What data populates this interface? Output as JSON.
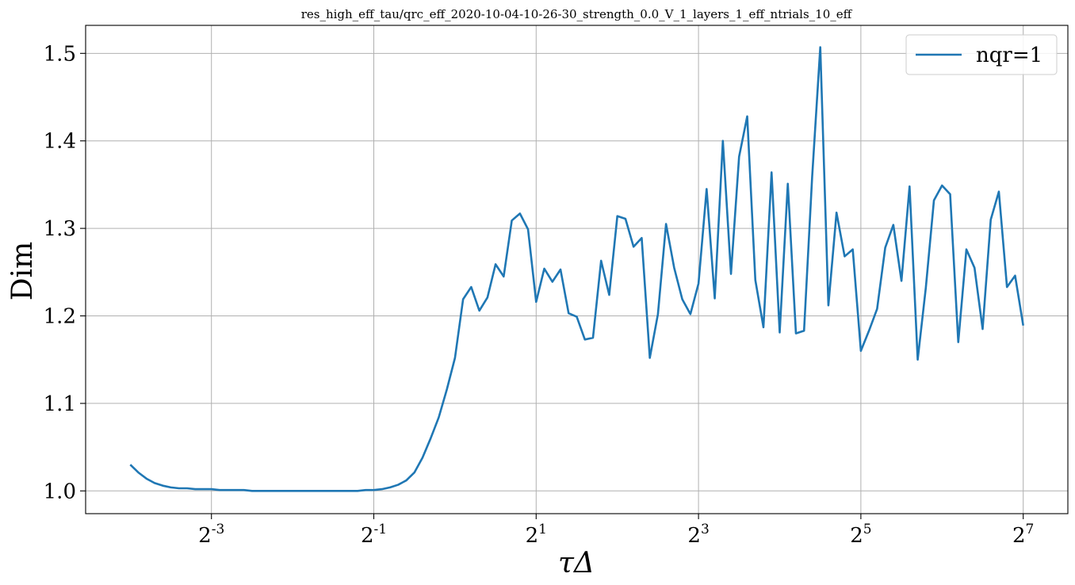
{
  "chart_data": {
    "type": "line",
    "title": "res_high_eff_tau/qrc_eff_2020-10-04-10-26-30_strength_0.0_V_1_layers_1_eff_ntrials_10_eff",
    "xlabel": "τΔ",
    "ylabel": "Dim",
    "xscale": "log2",
    "xlim_log2": [
      -4.55,
      7.55
    ],
    "ylim": [
      0.974,
      1.532
    ],
    "x_ticks": [
      {
        "base": "2",
        "exp": "-3",
        "log2": -3
      },
      {
        "base": "2",
        "exp": "-1",
        "log2": -1
      },
      {
        "base": "2",
        "exp": "1",
        "log2": 1
      },
      {
        "base": "2",
        "exp": "3",
        "log2": 3
      },
      {
        "base": "2",
        "exp": "5",
        "log2": 5
      },
      {
        "base": "2",
        "exp": "7",
        "log2": 7
      }
    ],
    "y_ticks": [
      "1.0",
      "1.1",
      "1.2",
      "1.3",
      "1.4",
      "1.5"
    ],
    "grid": true,
    "legend_position": "top-right",
    "color": "#1f77b4",
    "series": [
      {
        "name": "nqr=1",
        "x_log2": [
          -4.0,
          -3.9,
          -3.8,
          -3.7,
          -3.6,
          -3.5,
          -3.4,
          -3.3,
          -3.2,
          -3.1,
          -3.0,
          -2.9,
          -2.8,
          -2.7,
          -2.6,
          -2.5,
          -2.4,
          -2.3,
          -2.2,
          -2.1,
          -2.0,
          -1.9,
          -1.8,
          -1.7,
          -1.6,
          -1.5,
          -1.4,
          -1.3,
          -1.2,
          -1.1,
          -1.0,
          -0.9,
          -0.8,
          -0.7,
          -0.6,
          -0.5,
          -0.4,
          -0.3,
          -0.2,
          -0.1,
          0.0,
          0.1,
          0.2,
          0.3,
          0.4,
          0.5,
          0.6,
          0.7,
          0.8,
          0.9,
          1.0,
          1.1,
          1.2,
          1.3,
          1.4,
          1.5,
          1.6,
          1.7,
          1.8,
          1.9,
          2.0,
          2.1,
          2.2,
          2.3,
          2.4,
          2.5,
          2.6,
          2.7,
          2.8,
          2.9,
          3.0,
          3.1,
          3.2,
          3.3,
          3.4,
          3.5,
          3.6,
          3.7,
          3.8,
          3.9,
          4.0,
          4.1,
          4.2,
          4.3,
          4.4,
          4.5,
          4.6,
          4.7,
          4.8,
          4.9,
          5.0,
          5.1,
          5.2,
          5.3,
          5.4,
          5.5,
          5.6,
          5.7,
          5.8,
          5.9,
          6.0,
          6.1,
          6.2,
          6.3,
          6.4,
          6.5,
          6.6,
          6.7,
          6.8,
          6.9,
          7.0
        ],
        "y": [
          1.03,
          1.021,
          1.014,
          1.009,
          1.006,
          1.004,
          1.003,
          1.003,
          1.002,
          1.002,
          1.002,
          1.001,
          1.001,
          1.001,
          1.001,
          1.0,
          1.0,
          1.0,
          1.0,
          1.0,
          1.0,
          1.0,
          1.0,
          1.0,
          1.0,
          1.0,
          1.0,
          1.0,
          1.0,
          1.001,
          1.001,
          1.002,
          1.004,
          1.007,
          1.012,
          1.021,
          1.038,
          1.06,
          1.084,
          1.116,
          1.152,
          1.219,
          1.233,
          1.206,
          1.221,
          1.259,
          1.245,
          1.309,
          1.317,
          1.299,
          1.216,
          1.254,
          1.239,
          1.253,
          1.203,
          1.199,
          1.173,
          1.175,
          1.263,
          1.224,
          1.314,
          1.311,
          1.279,
          1.289,
          1.152,
          1.202,
          1.305,
          1.255,
          1.219,
          1.202,
          1.237,
          1.345,
          1.22,
          1.4,
          1.248,
          1.382,
          1.428,
          1.241,
          1.187,
          1.364,
          1.181,
          1.351,
          1.18,
          1.183,
          1.359,
          1.507,
          1.212,
          1.318,
          1.268,
          1.276,
          1.16,
          1.183,
          1.208,
          1.278,
          1.304,
          1.24,
          1.348,
          1.15,
          1.232,
          1.332,
          1.349,
          1.339,
          1.17,
          1.276,
          1.255,
          1.185,
          1.31,
          1.342,
          1.233,
          1.246,
          1.189
        ]
      }
    ]
  }
}
